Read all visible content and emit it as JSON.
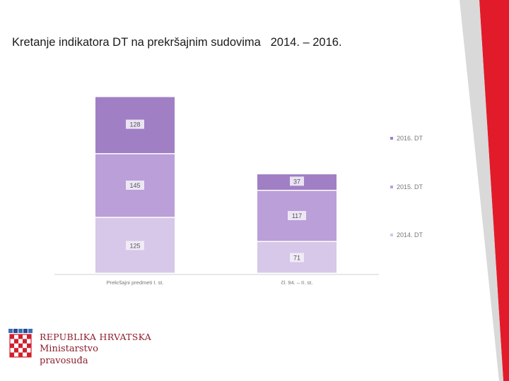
{
  "slide": {
    "title": "Kretanje indikatora DT na prekršajnim sudovima   2014. – 2016."
  },
  "logo": {
    "line1": "REPUBLIKA HRVATSKA",
    "line2": "Ministarstvo",
    "line3": "pravosuđa"
  },
  "colors": {
    "s2016": "#a07fc5",
    "s2015": "#bb9fd8",
    "s2014": "#d7c7e8",
    "accent_red": "#e21b2b"
  },
  "chart_data": {
    "type": "bar",
    "stacked": true,
    "categories": [
      "Prekršajni predmeti I. st.",
      "čl. 94. – II. st."
    ],
    "series": [
      {
        "name": "2014. DT",
        "values": [
          125,
          71
        ]
      },
      {
        "name": "2015. DT",
        "values": [
          145,
          117
        ]
      },
      {
        "name": "2016. DT",
        "values": [
          128,
          37
        ]
      }
    ],
    "legend": [
      "2016. DT",
      "2015. DT",
      "2014. DT"
    ],
    "legend_position": "right",
    "grid": false,
    "title": "",
    "xlabel": "",
    "ylabel": ""
  }
}
